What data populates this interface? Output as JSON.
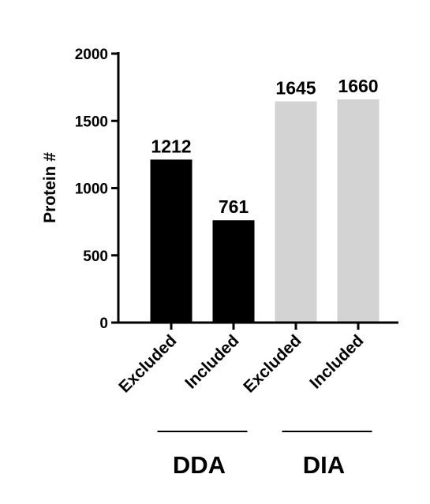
{
  "chart_data": {
    "type": "bar",
    "title": "",
    "xlabel": "",
    "ylabel": "Protein #",
    "ylim": [
      0,
      2000
    ],
    "yticks": [
      0,
      500,
      1000,
      1500,
      2000
    ],
    "grid": false,
    "categories": [
      "Excluded",
      "Included",
      "Excluded",
      "Included"
    ],
    "values": [
      1212,
      761,
      1645,
      1660
    ],
    "data_labels": [
      "1212",
      "761",
      "1645",
      "1660"
    ],
    "bar_colors": [
      "#000000",
      "#000000",
      "#d3d3d3",
      "#d3d3d3"
    ],
    "groups": [
      {
        "name": "DDA",
        "categories": [
          0,
          1
        ]
      },
      {
        "name": "DIA",
        "categories": [
          2,
          3
        ]
      }
    ]
  }
}
